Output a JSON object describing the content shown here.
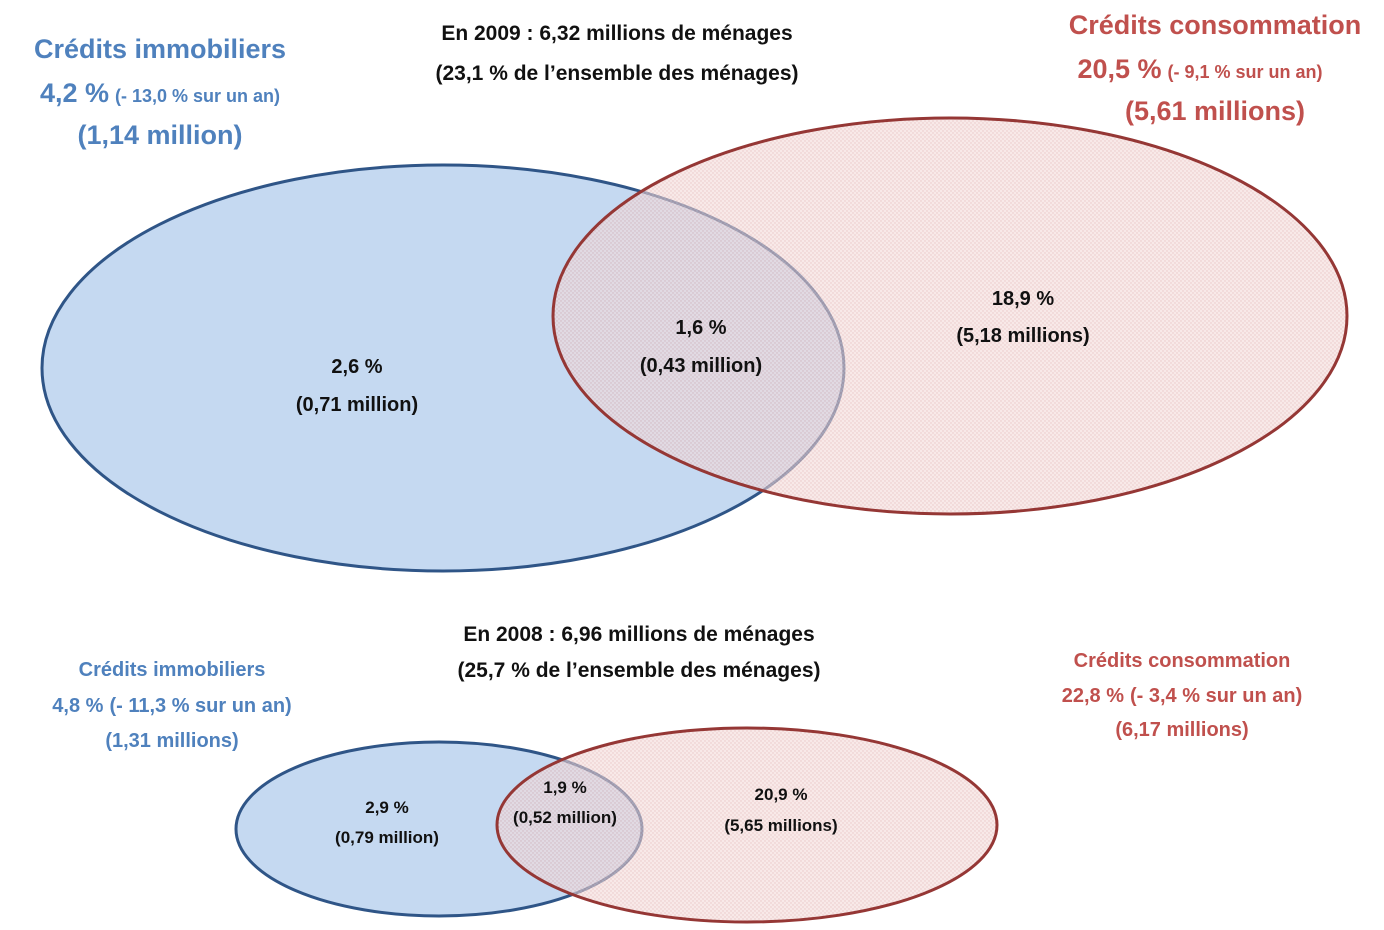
{
  "diagrams": [
    {
      "title": [
        "En 2009 : 6,32 millions de ménages",
        "(23,1 % de l’ensemble des ménages)"
      ],
      "left": {
        "name": "Crédits immobiliers",
        "share": "4,2 %",
        "change": "(- 13,0 % sur un an)",
        "count": "(1,14 million)"
      },
      "right": {
        "name": "Crédits consommation",
        "share": "20,5 %",
        "change": "(- 9,1 % sur un an)",
        "count": "(5,61 millions)"
      },
      "regions": {
        "left_only": [
          "2,6 %",
          "(0,71 million)"
        ],
        "both": [
          "1,6 %",
          "(0,43 million)"
        ],
        "right_only": [
          "18,9 %",
          "(5,18 millions)"
        ]
      }
    },
    {
      "title": [
        "En 2008 : 6,96 millions de ménages",
        "(25,7 % de l’ensemble des ménages)"
      ],
      "left": {
        "name": "Crédits immobiliers",
        "share": "4,8 %",
        "change": "(- 11,3 % sur un an)",
        "count": "(1,31 millions)"
      },
      "right": {
        "name": "Crédits consommation",
        "share": "22,8 %",
        "change": "(- 3,4 % sur un an)",
        "count": "(6,17 millions)"
      },
      "regions": {
        "left_only": [
          "2,9 %",
          "(0,79 million)"
        ],
        "both": [
          "1,9 %",
          "(0,52 million)"
        ],
        "right_only": [
          "20,9 %",
          "(5,65 millions)"
        ]
      }
    }
  ]
}
